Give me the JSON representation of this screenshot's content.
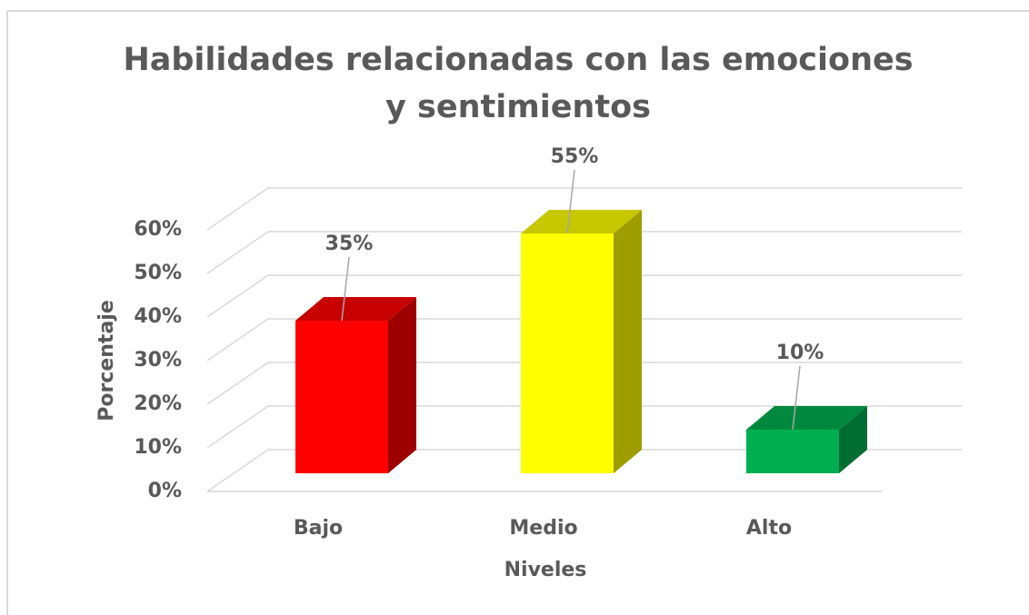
{
  "chart_data": {
    "type": "bar3d",
    "title": "Habilidades relacionadas con las emociones y sentimientos",
    "x_label": "Niveles",
    "y_label": "Porcentaje",
    "categories": [
      "Bajo",
      "Medio",
      "Alto"
    ],
    "values": [
      35,
      55,
      10
    ],
    "value_labels": [
      "35%",
      "55%",
      "10%"
    ],
    "colors": [
      "#ff0000",
      "#ffff00",
      "#00b050"
    ],
    "ylim": [
      0,
      60
    ],
    "yticks": [
      {
        "value": 0,
        "label": "0%"
      },
      {
        "value": 10,
        "label": "10%"
      },
      {
        "value": 20,
        "label": "20%"
      },
      {
        "value": 30,
        "label": "30%"
      },
      {
        "value": 40,
        "label": "40%"
      },
      {
        "value": 50,
        "label": "50%"
      },
      {
        "value": 60,
        "label": "60%"
      }
    ],
    "grid": true
  }
}
